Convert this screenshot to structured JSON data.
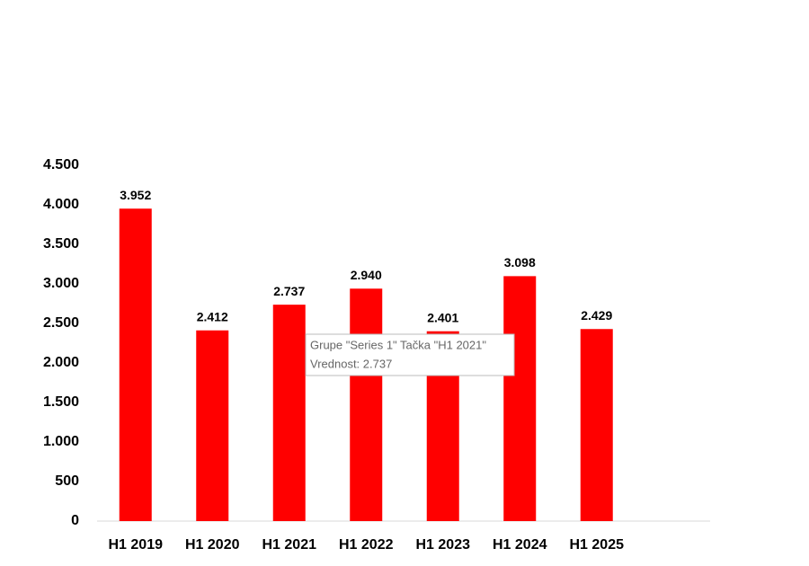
{
  "chart_data": {
    "type": "bar",
    "categories": [
      "H1 2019",
      "H1 2020",
      "H1 2021",
      "H1 2022",
      "H1 2023",
      "H1 2024",
      "H1 2025"
    ],
    "values": [
      3952,
      2412,
      2737,
      2940,
      2401,
      3098,
      2429
    ],
    "value_labels": [
      "3.952",
      "2.412",
      "2.737",
      "2.940",
      "2.401",
      "3.098",
      "2.429"
    ],
    "color": "#ff0000",
    "ylim": [
      0,
      4500
    ],
    "yticks": [
      0,
      500,
      {
        "value": 1000,
        "label": "1.000"
      },
      {
        "value": 1500,
        "label": "1.500"
      },
      {
        "value": 2000,
        "label": "2.000"
      },
      {
        "value": 2500,
        "label": "2.500"
      },
      {
        "value": 3000,
        "label": "3.000"
      },
      {
        "value": 3500,
        "label": "3.500"
      },
      {
        "value": 4000,
        "label": "4.000"
      },
      {
        "value": 4500,
        "label": "4.500"
      }
    ],
    "grid": false,
    "tooltip": {
      "lines": [
        "Grupe \"Series 1\" Tačka \"H1 2021\"",
        "Vrednost: 2.737"
      ]
    }
  }
}
